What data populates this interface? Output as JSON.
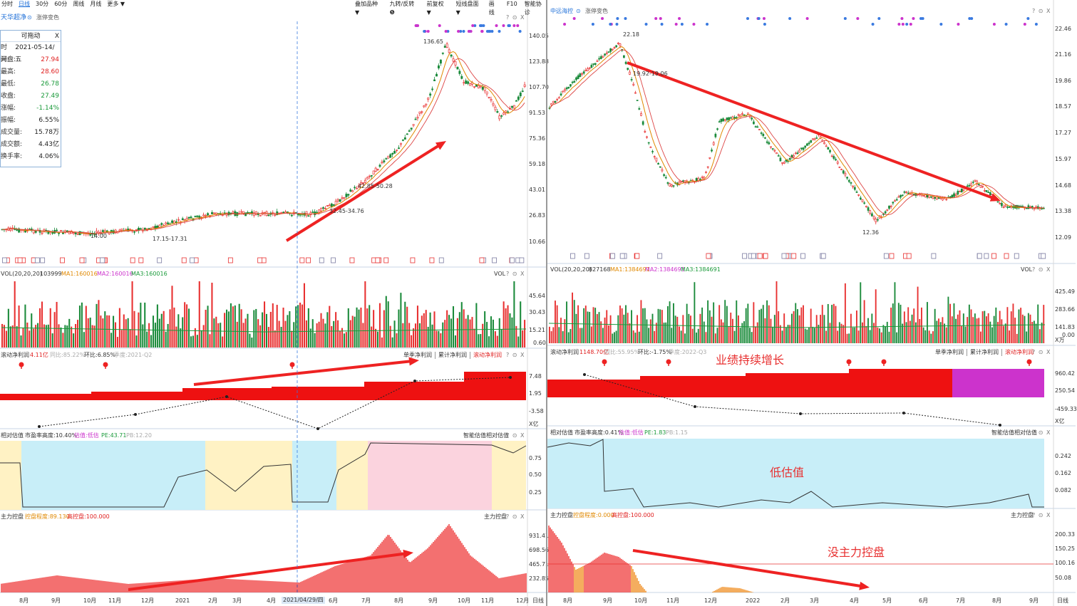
{
  "toolbar": {
    "left_items": [
      "分时",
      "日线",
      "30分",
      "60分",
      "周线",
      "月线",
      "更多 ▼"
    ],
    "left_active": "日线",
    "right_items": [
      "叠加品种 ▼",
      "九转/反转 ❺",
      "前复权 ▼",
      "短线盘面▼",
      "画线",
      "F10",
      "智能协诊"
    ]
  },
  "left": {
    "stock_name": "天华超净",
    "toggle_label": "涨停变色",
    "price_axis": [
      "140.05",
      "123.88",
      "107.70",
      "91.53",
      "75.36",
      "59.18",
      "43.01",
      "26.83",
      "10.66"
    ],
    "peak_label": "136.65",
    "annotations": [
      "42.85-50.28",
      "32.45-34.76",
      "17.15-17.31",
      "14.00"
    ],
    "info_box": {
      "title": "可拖动",
      "close": "X",
      "rows": [
        {
          "label": "时间:",
          "value": "2021-05-14/五",
          "color": "#222222"
        },
        {
          "label": "开盘:",
          "value": "27.94",
          "color": "#e02020"
        },
        {
          "label": "最高:",
          "value": "28.60",
          "color": "#e02020"
        },
        {
          "label": "最低:",
          "value": "26.78",
          "color": "#1a9a3a"
        },
        {
          "label": "收盘:",
          "value": "27.49",
          "color": "#1a9a3a"
        },
        {
          "label": "涨幅:",
          "value": "-1.14%",
          "color": "#1a9a3a"
        },
        {
          "label": "振幅:",
          "value": "6.55%",
          "color": "#222222"
        },
        {
          "label": "成交量:",
          "value": "15.78万",
          "color": "#222222"
        },
        {
          "label": "成交额:",
          "value": "4.43亿",
          "color": "#222222"
        },
        {
          "label": "换手率:",
          "value": "4.06%",
          "color": "#222222"
        }
      ]
    },
    "vol": {
      "title": "VOL(20,20,20)",
      "value": "103999",
      "ma1": "MA1:160016",
      "ma2": "MA2:160016",
      "ma3": "MA3:160016",
      "name": "VOL",
      "axis": [
        "45.64",
        "30.43",
        "15.21",
        "0.60"
      ]
    },
    "profit": {
      "title": "滚动净利润",
      "value": "4.11亿",
      "yoy": "同比:85.22%",
      "qoq": "环比:6.85%",
      "season": "季度:2021-Q2",
      "tabs": [
        "单季净利润",
        "累计净利润",
        "滚动净利润"
      ],
      "axis": [
        "7.48",
        "1.95",
        "-3.58"
      ],
      "unit": "X亿"
    },
    "valuation": {
      "title": "相对估值",
      "pe_pct": "市盈率高度:10.40%",
      "status_label": "估值:低估",
      "pe": "PE:43.71",
      "pb": "PB:12.20",
      "name": "智能估值相对估值",
      "axis": [
        "0.75",
        "0.50",
        "0.25"
      ]
    },
    "control": {
      "title": "主力控盘",
      "degree": "控盘程度:89.130",
      "high": "高控盘:100.000",
      "name": "主力控盘",
      "axis": [
        "931.41",
        "698.56",
        "465.71",
        "232.85"
      ]
    },
    "x_axis": [
      "8月",
      "9月",
      "10月",
      "11月",
      "12月",
      "2021",
      "2月",
      "3月",
      "4月",
      "2021/04/29/四",
      "6月",
      "7月",
      "8月",
      "9月",
      "10月",
      "11月",
      "12月"
    ],
    "x_axis_tag": "日线"
  },
  "right": {
    "stock_name": "中远海控",
    "toggle_label": "涨停变色",
    "price_axis": [
      "22.46",
      "21.16",
      "19.86",
      "18.57",
      "17.27",
      "15.97",
      "14.68",
      "13.38",
      "12.09"
    ],
    "peak_label": "22.18",
    "low_label": "12.36",
    "annotations": [
      "19.92-19.06"
    ],
    "vol": {
      "title": "VOL(20,20,20)",
      "value": "827168",
      "ma1": "MA1:1384691",
      "ma2": "MA2:1384691",
      "ma3": "MA3:1384691",
      "name": "VOL",
      "axis": [
        "425.49",
        "283.66",
        "141.83",
        "0.00"
      ],
      "unit": "X万"
    },
    "profit": {
      "title": "滚动净利润",
      "value": "1148.70亿",
      "yoy": "同比:55.95%",
      "qoq": "环比:-1.75%",
      "season": "季度:2022-Q3",
      "tabs": [
        "单季净利润",
        "累计净利润",
        "滚动净利润"
      ],
      "axis": [
        "960.42",
        "250.54",
        "-459.33"
      ],
      "unit": "X亿",
      "callout": "业绩持续增长"
    },
    "valuation": {
      "title": "相对估值",
      "pe_pct": "市盈率高度:0.41%",
      "status_label": "估值:低估",
      "pe": "PE:1.83",
      "pb": "PB:1.15",
      "name": "智能估值相对估值",
      "axis": [
        "0.242",
        "0.162",
        "0.082"
      ],
      "callout": "低估值"
    },
    "control": {
      "title": "主力控盘",
      "degree": "控盘程度:0.000",
      "high": "高控盘:100.000",
      "name": "主力控盘",
      "axis": [
        "200.33",
        "150.25",
        "100.16",
        "50.08"
      ],
      "callout": "没主力控盘"
    },
    "x_axis": [
      "8月",
      "9月",
      "10月",
      "11月",
      "12月",
      "2022",
      "2月",
      "3月",
      "4月",
      "5月",
      "6月",
      "7月",
      "8月",
      "9月"
    ],
    "x_axis_tag": "日线"
  },
  "panel_controls": "? ⊙ X",
  "colors": {
    "up": "#e83030",
    "down": "#1a8a3a",
    "accent_blue": "#1e6fd8",
    "magenta": "#cc33cc",
    "valuation_blue": "#c8eef8",
    "valuation_yellow": "#fff2c4",
    "valuation_pink": "#fbd3de"
  }
}
